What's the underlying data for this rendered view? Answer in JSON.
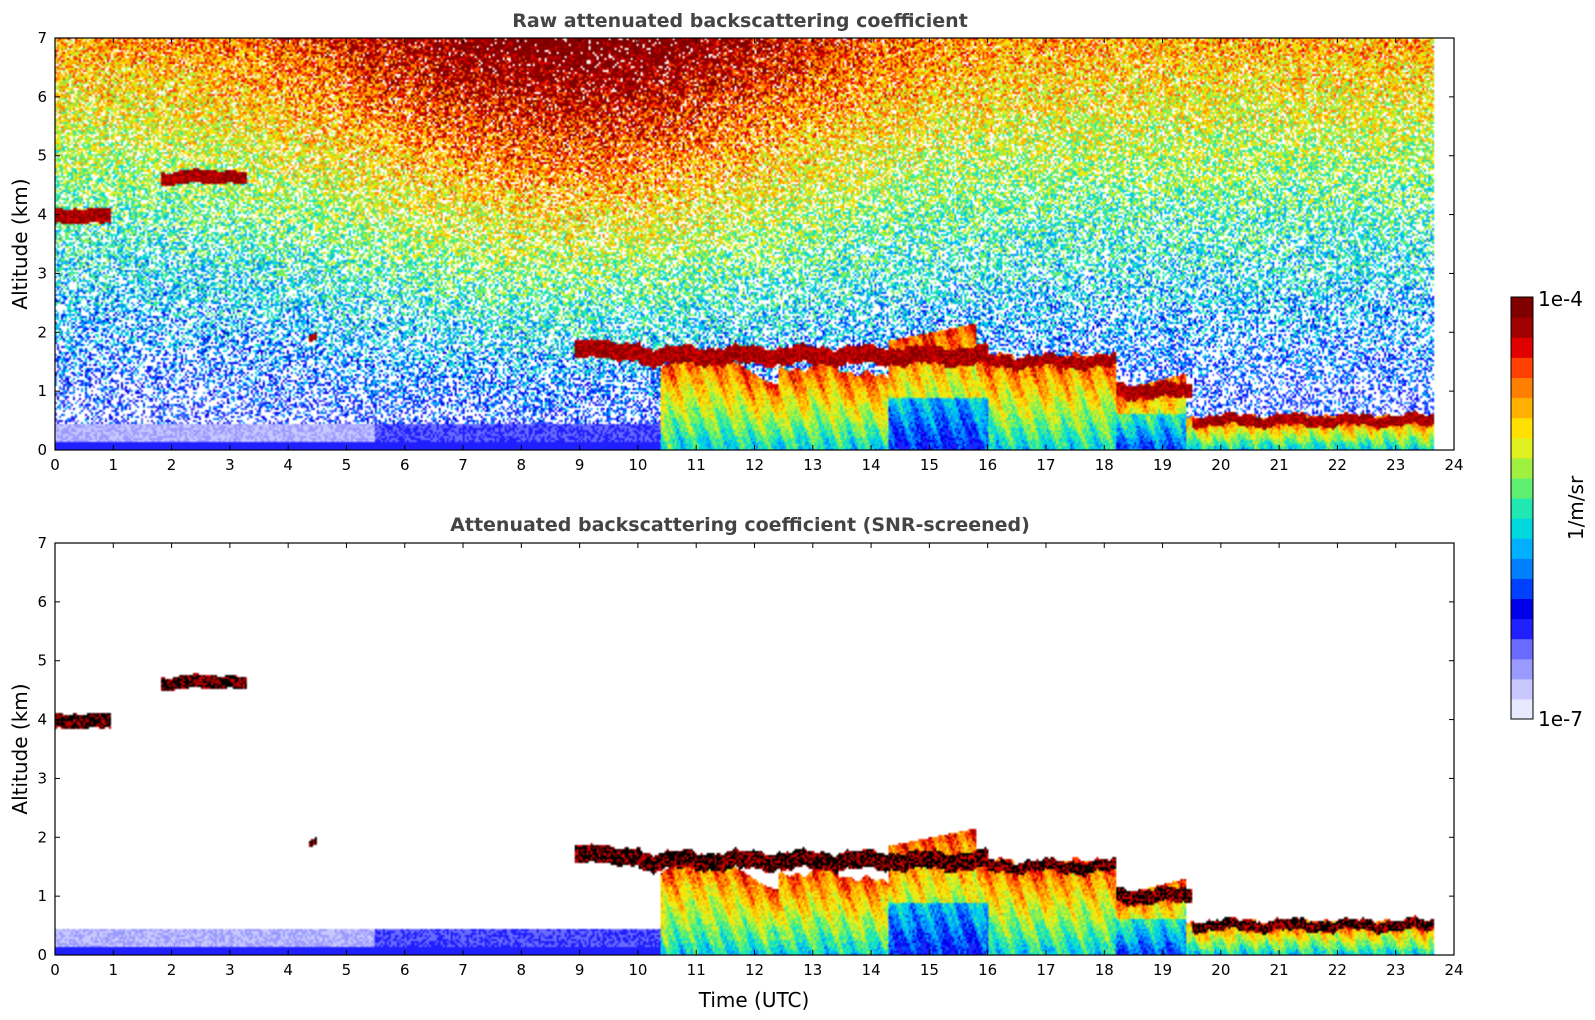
{
  "chart_data": [
    {
      "type": "heatmap",
      "title": "Raw attenuated backscattering coefficient",
      "xlabel": "",
      "ylabel": "Altitude (km)",
      "xlim": [
        0,
        24
      ],
      "ylim": [
        0,
        7
      ],
      "xticks": [
        "0",
        "1",
        "2",
        "3",
        "4",
        "5",
        "6",
        "7",
        "8",
        "9",
        "10",
        "11",
        "12",
        "13",
        "14",
        "15",
        "16",
        "17",
        "18",
        "19",
        "20",
        "21",
        "22",
        "23",
        "24"
      ],
      "yticks": [
        "0",
        "1",
        "2",
        "3",
        "4",
        "5",
        "6",
        "7"
      ],
      "data_end_hour": 23.65,
      "screened": false,
      "features": [
        {
          "name": "cloud",
          "t0": 0.0,
          "t1": 0.95,
          "alt": 3.95,
          "thick": 0.25
        },
        {
          "name": "cloud",
          "t0": 1.8,
          "t1": 3.3,
          "alt": 4.62,
          "thick": 0.22
        },
        {
          "name": "cloud",
          "t0": 4.35,
          "t1": 4.5,
          "alt": 1.9,
          "thick": 0.12
        },
        {
          "name": "cloud",
          "t0": 8.9,
          "t1": 10.05,
          "alt": 1.7,
          "thick": 0.3
        },
        {
          "name": "cloud-top",
          "t0": 10.0,
          "t1": 16.0,
          "alt": 1.6,
          "thick": 0.3
        },
        {
          "name": "cloud-top",
          "t0": 16.0,
          "t1": 18.2,
          "alt": 1.5,
          "thick": 0.2
        },
        {
          "name": "cloud-top",
          "t0": 18.2,
          "t1": 19.5,
          "alt": 1.0,
          "thick": 0.25
        },
        {
          "name": "cloud-top",
          "t0": 19.5,
          "t1": 23.65,
          "alt": 0.5,
          "thick": 0.18
        }
      ]
    },
    {
      "type": "heatmap",
      "title": "Attenuated backscattering coefficient (SNR-screened)",
      "xlabel": "Time (UTC)",
      "ylabel": "Altitude (km)",
      "xlim": [
        0,
        24
      ],
      "ylim": [
        0,
        7
      ],
      "xticks": [
        "0",
        "1",
        "2",
        "3",
        "4",
        "5",
        "6",
        "7",
        "8",
        "9",
        "10",
        "11",
        "12",
        "13",
        "14",
        "15",
        "16",
        "17",
        "18",
        "19",
        "20",
        "21",
        "22",
        "23",
        "24"
      ],
      "yticks": [
        "0",
        "1",
        "2",
        "3",
        "4",
        "5",
        "6",
        "7"
      ],
      "data_end_hour": 23.65,
      "screened": true
    }
  ],
  "colorbar": {
    "label": "1/m/sr",
    "max_label": "1e-4",
    "min_label": "1e-7",
    "colors": [
      "#e8e8ff",
      "#c8c8ff",
      "#9a9aff",
      "#6a6aff",
      "#2020ff",
      "#0000e8",
      "#0040ff",
      "#0080ff",
      "#00b0ff",
      "#00d8e0",
      "#20e8b0",
      "#60f070",
      "#a0f040",
      "#e0f020",
      "#ffe000",
      "#ffb000",
      "#ff8000",
      "#ff4000",
      "#e00000",
      "#a00000",
      "#800000"
    ]
  }
}
